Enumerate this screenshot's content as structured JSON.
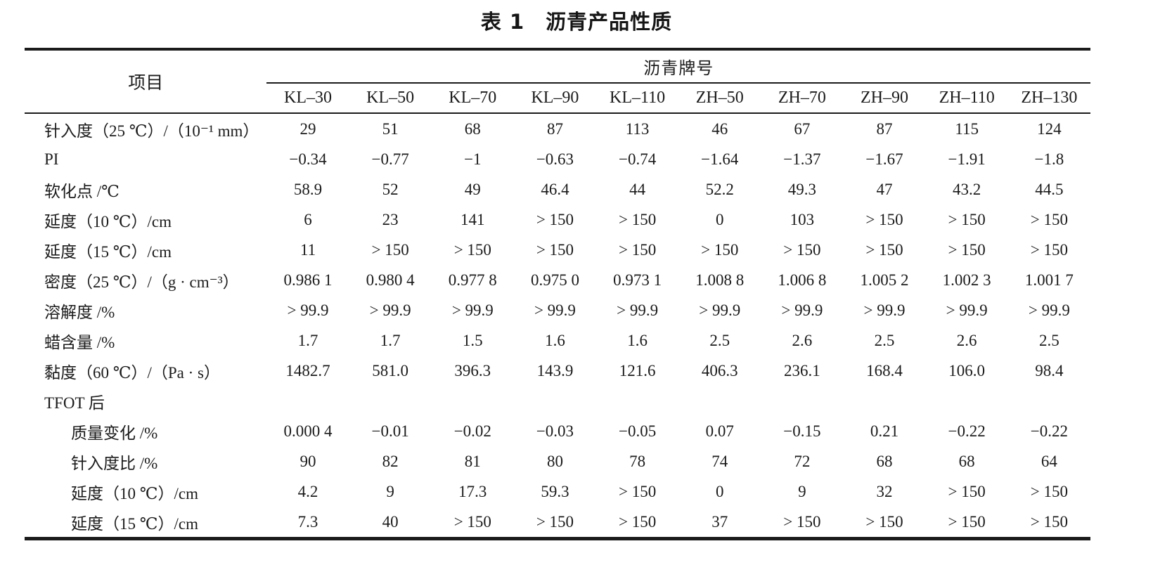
{
  "title": "表 1　沥青产品性质",
  "table": {
    "item_header": "项目",
    "group_header": "沥青牌号",
    "columns": [
      "KL–30",
      "KL–50",
      "KL–70",
      "KL–90",
      "KL–110",
      "ZH–50",
      "ZH–70",
      "ZH–90",
      "ZH–110",
      "ZH–130"
    ],
    "rows": [
      {
        "label": "针入度（25 ℃）/（10⁻¹ mm）",
        "indent": 0,
        "values": [
          "29",
          "51",
          "68",
          "87",
          "113",
          "46",
          "67",
          "87",
          "115",
          "124"
        ]
      },
      {
        "label": "PI",
        "indent": 0,
        "values": [
          "−0.34",
          "−0.77",
          "−1",
          "−0.63",
          "−0.74",
          "−1.64",
          "−1.37",
          "−1.67",
          "−1.91",
          "−1.8"
        ]
      },
      {
        "label": "软化点 /℃",
        "indent": 0,
        "values": [
          "58.9",
          "52",
          "49",
          "46.4",
          "44",
          "52.2",
          "49.3",
          "47",
          "43.2",
          "44.5"
        ]
      },
      {
        "label": "延度（10 ℃）/cm",
        "indent": 0,
        "values": [
          "6",
          "23",
          "141",
          "> 150",
          "> 150",
          "0",
          "103",
          "> 150",
          "> 150",
          "> 150"
        ]
      },
      {
        "label": "延度（15 ℃）/cm",
        "indent": 0,
        "values": [
          "11",
          "> 150",
          "> 150",
          "> 150",
          "> 150",
          "> 150",
          "> 150",
          "> 150",
          "> 150",
          "> 150"
        ]
      },
      {
        "label": "密度（25 ℃）/（g · cm⁻³）",
        "indent": 0,
        "values": [
          "0.986 1",
          "0.980 4",
          "0.977 8",
          "0.975 0",
          "0.973 1",
          "1.008 8",
          "1.006 8",
          "1.005 2",
          "1.002 3",
          "1.001 7"
        ]
      },
      {
        "label": "溶解度 /%",
        "indent": 0,
        "values": [
          "> 99.9",
          "> 99.9",
          "> 99.9",
          "> 99.9",
          "> 99.9",
          "> 99.9",
          "> 99.9",
          "> 99.9",
          "> 99.9",
          "> 99.9"
        ]
      },
      {
        "label": "蜡含量 /%",
        "indent": 0,
        "values": [
          "1.7",
          "1.7",
          "1.5",
          "1.6",
          "1.6",
          "2.5",
          "2.6",
          "2.5",
          "2.6",
          "2.5"
        ]
      },
      {
        "label": "黏度（60 ℃）/（Pa · s）",
        "indent": 0,
        "values": [
          "1482.7",
          "581.0",
          "396.3",
          "143.9",
          "121.6",
          "406.3",
          "236.1",
          "168.4",
          "106.0",
          "98.4"
        ]
      },
      {
        "label": "TFOT 后",
        "indent": 0,
        "values": [
          "",
          "",
          "",
          "",
          "",
          "",
          "",
          "",
          "",
          ""
        ]
      },
      {
        "label": "质量变化 /%",
        "indent": 1,
        "values": [
          "0.000 4",
          "−0.01",
          "−0.02",
          "−0.03",
          "−0.05",
          "0.07",
          "−0.15",
          "0.21",
          "−0.22",
          "−0.22"
        ]
      },
      {
        "label": "针入度比 /%",
        "indent": 1,
        "values": [
          "90",
          "82",
          "81",
          "80",
          "78",
          "74",
          "72",
          "68",
          "68",
          "64"
        ]
      },
      {
        "label": "延度（10 ℃）/cm",
        "indent": 1,
        "values": [
          "4.2",
          "9",
          "17.3",
          "59.3",
          "> 150",
          "0",
          "9",
          "32",
          "> 150",
          "> 150"
        ]
      },
      {
        "label": "延度（15 ℃）/cm",
        "indent": 1,
        "values": [
          "7.3",
          "40",
          "> 150",
          "> 150",
          "> 150",
          "37",
          "> 150",
          "> 150",
          "> 150",
          "> 150"
        ]
      }
    ]
  },
  "colors": {
    "text": "#1b1b1b",
    "rule": "#1b1b1b",
    "background": "#ffffff"
  }
}
